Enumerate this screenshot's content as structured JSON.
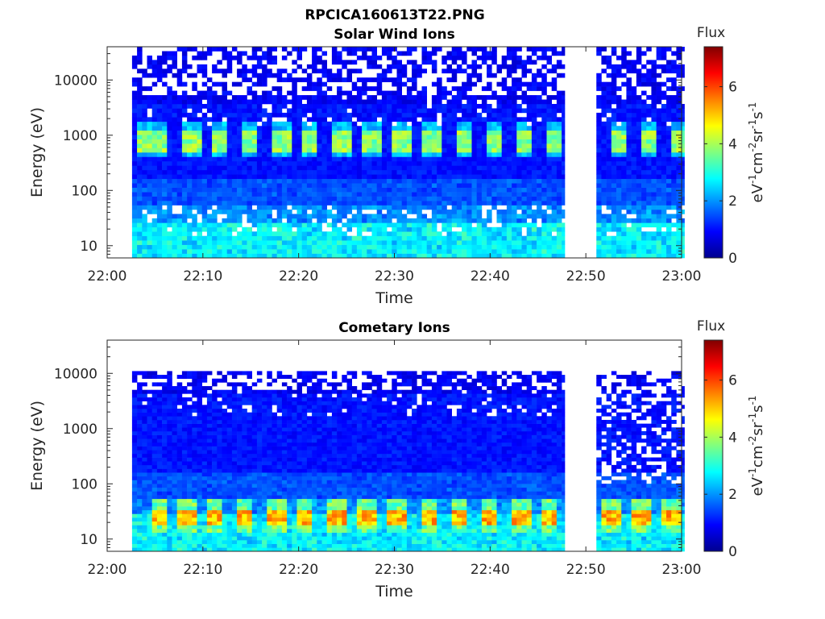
{
  "figure": {
    "title": "RPCICA160613T22.PNG"
  },
  "chart_data": [
    {
      "type": "heatmap",
      "title": "Solar Wind Ions",
      "xlabel": "Time",
      "ylabel": "Energy (eV)",
      "x_ticks": [
        "22:00",
        "22:10",
        "22:20",
        "22:30",
        "22:40",
        "22:50",
        "23:00"
      ],
      "x_range_minutes": [
        0,
        60
      ],
      "y_scale": "log",
      "y_ticks": [
        10,
        100,
        1000,
        10000
      ],
      "y_ticks_labels": [
        "10",
        "100",
        "1000",
        "10000"
      ],
      "y_range": [
        6,
        40000
      ],
      "colorbar": {
        "label": "Flux",
        "units": [
          "eV",
          "-1",
          "cm",
          "-2",
          "sr",
          "-1",
          "s",
          "-1"
        ],
        "ticks": [
          0,
          2,
          4,
          6
        ],
        "ticks_labels": [
          "0",
          "2",
          "4",
          "6"
        ],
        "range": [
          0,
          7.4
        ],
        "colormap": "jet"
      },
      "data_segments_minutes": [
        [
          2.6,
          47.8
        ],
        [
          51.1,
          60.3
        ]
      ],
      "dominant_features": [
        {
          "energy_ev": 800,
          "peak_flux": 4.0,
          "note": "periodic solar wind bursts, period ~3.2 min"
        },
        {
          "energy_ev": 20,
          "peak_flux": 2.6,
          "note": "low-energy cyan band"
        }
      ],
      "burst_times_minutes": [
        3.8,
        5.6,
        8.9,
        11.6,
        15.0,
        18.3,
        21.1,
        24.4,
        27.6,
        30.7,
        33.9,
        37.2,
        40.4,
        43.7,
        46.7,
        53.4,
        56.6,
        59.8
      ]
    },
    {
      "type": "heatmap",
      "title": "Cometary Ions",
      "xlabel": "Time",
      "ylabel": "Energy (eV)",
      "x_ticks": [
        "22:00",
        "22:10",
        "22:20",
        "22:30",
        "22:40",
        "22:50",
        "23:00"
      ],
      "x_range_minutes": [
        0,
        60
      ],
      "y_scale": "log",
      "y_ticks": [
        10,
        100,
        1000,
        10000
      ],
      "y_ticks_labels": [
        "10",
        "100",
        "1000",
        "10000"
      ],
      "y_range": [
        6,
        40000
      ],
      "colorbar": {
        "label": "Flux",
        "units": [
          "eV",
          "-1",
          "cm",
          "-2",
          "sr",
          "-1",
          "s",
          "-1"
        ],
        "ticks": [
          0,
          2,
          4,
          6
        ],
        "ticks_labels": [
          "0",
          "2",
          "4",
          "6"
        ],
        "range": [
          0,
          7.4
        ],
        "colormap": "jet"
      },
      "data_segments_minutes": [
        [
          2.6,
          47.8
        ],
        [
          51.1,
          60.3
        ]
      ],
      "energy_upper_limit_ev": 11000,
      "dominant_features": [
        {
          "energy_ev": 25,
          "peak_flux": 5.5,
          "note": "periodic cometary ion bursts, period ~3.2 min"
        }
      ],
      "burst_times_minutes": [
        5.6,
        8.3,
        11.1,
        14.4,
        17.7,
        20.6,
        24.0,
        27.1,
        30.3,
        33.6,
        36.8,
        39.9,
        43.2,
        46.3,
        52.6,
        55.8,
        59.0
      ]
    }
  ]
}
